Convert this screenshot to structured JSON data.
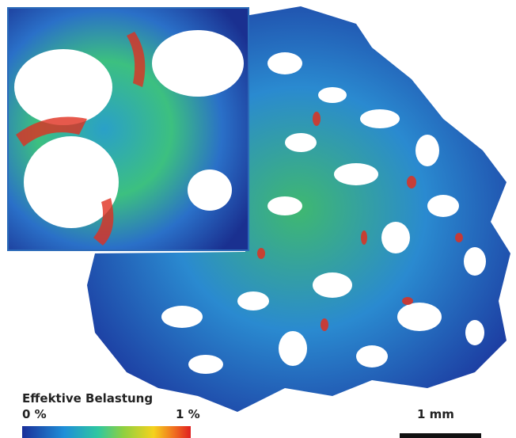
{
  "legend": {
    "title": "Effektive Belastung",
    "min_label": "0 %",
    "max_label": "1 %"
  },
  "scale_bar": {
    "label": "1 mm"
  }
}
